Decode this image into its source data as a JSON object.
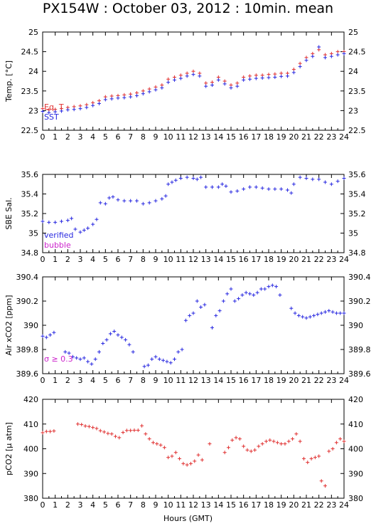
{
  "title": "PX154W : October 03, 2012 : 10min. mean",
  "colors": {
    "eq_t": "#e03030",
    "sst": "#2828e0",
    "verified": "#2828e0",
    "bubble": "#cc22cc",
    "pco2": "#e03030",
    "sigma": "#cc22cc"
  },
  "xlabel": "Hours (GMT)",
  "chart_data": [
    {
      "type": "scatter",
      "ylabel": "Temp. [°C]",
      "ylim": [
        22.5,
        25
      ],
      "yticks": [
        "22.5",
        "23",
        "23.5",
        "24",
        "24.5",
        "25"
      ],
      "xlim": [
        0,
        24
      ],
      "xticks": [
        "0",
        "1",
        "2",
        "3",
        "4",
        "5",
        "6",
        "7",
        "8",
        "9",
        "10",
        "11",
        "12",
        "13",
        "14",
        "15",
        "16",
        "17",
        "18",
        "19",
        "20",
        "21",
        "22",
        "23",
        "24"
      ],
      "legend": [
        "Eq. T",
        "SST"
      ],
      "series": [
        {
          "name": "Eq. T",
          "x": [
            0,
            0.5,
            1,
            1.5,
            2,
            2.5,
            3,
            3.5,
            4,
            4.5,
            5,
            5.5,
            6,
            6.5,
            7,
            7.5,
            8,
            8.5,
            9,
            9.5,
            10,
            10.5,
            11,
            11.5,
            12,
            12.5,
            13,
            13.5,
            14,
            14.5,
            15,
            15.5,
            16,
            16.5,
            17,
            17.5,
            18,
            18.5,
            19,
            19.5,
            20,
            20.5,
            21,
            21.5,
            22,
            22.5,
            23,
            23.5,
            24
          ],
          "y": [
            23.05,
            23.02,
            23.03,
            23.05,
            23.08,
            23.1,
            23.12,
            23.15,
            23.2,
            23.25,
            23.35,
            23.37,
            23.38,
            23.4,
            23.42,
            23.45,
            23.5,
            23.55,
            23.6,
            23.65,
            23.8,
            23.85,
            23.9,
            23.95,
            24.0,
            23.95,
            23.7,
            23.72,
            23.85,
            23.75,
            23.65,
            23.7,
            23.85,
            23.88,
            23.9,
            23.9,
            23.92,
            23.93,
            23.95,
            23.95,
            24.05,
            24.2,
            24.35,
            24.45,
            24.55,
            24.42,
            24.45,
            24.5,
            24.5
          ]
        },
        {
          "name": "SST",
          "x": [
            0,
            0.5,
            1,
            1.5,
            2,
            2.5,
            3,
            3.5,
            4,
            4.5,
            5,
            5.5,
            6,
            6.5,
            7,
            7.5,
            8,
            8.5,
            9,
            9.5,
            10,
            10.5,
            11,
            11.5,
            12,
            12.5,
            13,
            13.5,
            14,
            14.5,
            15,
            15.5,
            16,
            16.5,
            17,
            17.5,
            18,
            18.5,
            19,
            19.5,
            20,
            20.5,
            21,
            21.5,
            22,
            22.5,
            23,
            23.5,
            24
          ],
          "y": [
            22.98,
            22.95,
            22.97,
            22.99,
            23.02,
            23.03,
            23.05,
            23.08,
            23.13,
            23.18,
            23.28,
            23.3,
            23.32,
            23.33,
            23.35,
            23.38,
            23.43,
            23.48,
            23.53,
            23.58,
            23.72,
            23.78,
            23.82,
            23.88,
            23.92,
            23.88,
            23.62,
            23.65,
            23.78,
            23.68,
            23.58,
            23.62,
            23.78,
            23.8,
            23.82,
            23.83,
            23.84,
            23.85,
            23.87,
            23.88,
            23.97,
            24.12,
            24.28,
            24.38,
            24.62,
            24.35,
            24.38,
            24.42,
            24.45
          ]
        }
      ]
    },
    {
      "type": "scatter",
      "ylabel": "SBE Sal.",
      "ylim": [
        34.8,
        35.6
      ],
      "yticks": [
        "34.8",
        "35",
        "35.2",
        "35.4",
        "35.6"
      ],
      "xlim": [
        0,
        24
      ],
      "xticks": [
        "0",
        "1",
        "2",
        "3",
        "4",
        "5",
        "6",
        "7",
        "8",
        "9",
        "10",
        "11",
        "12",
        "13",
        "14",
        "15",
        "16",
        "17",
        "18",
        "19",
        "20",
        "21",
        "22",
        "23",
        "24"
      ],
      "legend": [
        "verified",
        "bubble"
      ],
      "series": [
        {
          "name": "verified",
          "x": [
            0,
            0.5,
            1,
            1.5,
            2,
            2.3,
            2.6,
            3,
            3.3,
            3.6,
            4,
            4.3,
            4.6,
            5,
            5.3,
            5.6,
            6,
            6.5,
            7,
            7.5,
            8,
            8.5,
            9,
            9.5,
            9.8,
            10,
            10.3,
            10.6,
            11,
            11.5,
            12,
            12.3,
            12.6,
            13,
            13.5,
            14,
            14.3,
            14.6,
            15,
            15.5,
            16,
            16.5,
            17,
            17.5,
            18,
            18.5,
            19,
            19.5,
            19.8,
            20,
            20.5,
            21,
            21.5,
            22,
            22.5,
            23,
            23.5,
            24
          ],
          "y": [
            35.12,
            35.11,
            35.11,
            35.12,
            35.13,
            35.15,
            35.04,
            35.01,
            35.03,
            35.05,
            35.09,
            35.14,
            35.31,
            35.3,
            35.36,
            35.37,
            35.34,
            35.33,
            35.33,
            35.33,
            35.3,
            35.31,
            35.33,
            35.35,
            35.38,
            35.5,
            35.52,
            35.54,
            35.56,
            35.57,
            35.56,
            35.55,
            35.57,
            35.47,
            35.47,
            35.47,
            35.5,
            35.48,
            35.42,
            35.43,
            35.45,
            35.47,
            35.47,
            35.46,
            35.45,
            35.45,
            35.45,
            35.44,
            35.41,
            35.5,
            35.57,
            35.56,
            35.55,
            35.55,
            35.52,
            35.5,
            35.53,
            35.56
          ]
        }
      ]
    },
    {
      "type": "scatter",
      "ylabel": "Air xCO2 [ppm]",
      "ylim": [
        389.6,
        390.4
      ],
      "yticks": [
        "389.6",
        "389.8",
        "390",
        "390.2",
        "390.4"
      ],
      "xlim": [
        0,
        24
      ],
      "xticks": [
        "0",
        "1",
        "2",
        "3",
        "4",
        "5",
        "6",
        "7",
        "8",
        "9",
        "10",
        "11",
        "12",
        "13",
        "14",
        "15",
        "16",
        "17",
        "18",
        "19",
        "20",
        "21",
        "22",
        "23",
        "24"
      ],
      "annotation": "σ ≥ 0.3",
      "series": [
        {
          "name": "Air xCO2",
          "x": [
            0,
            0.3,
            0.6,
            0.9,
            1.8,
            2.1,
            2.4,
            2.7,
            3,
            3.3,
            3.6,
            3.9,
            4.2,
            4.5,
            4.8,
            5.1,
            5.4,
            5.7,
            6,
            6.3,
            6.6,
            6.9,
            7.2,
            8.1,
            8.4,
            8.7,
            9,
            9.3,
            9.6,
            9.9,
            10.2,
            10.5,
            10.8,
            11.1,
            11.4,
            11.7,
            12,
            12.3,
            12.6,
            12.9,
            13.5,
            13.8,
            14.1,
            14.4,
            14.7,
            15,
            15.3,
            15.6,
            15.9,
            16.2,
            16.5,
            16.8,
            17.1,
            17.4,
            17.7,
            18,
            18.3,
            18.6,
            18.9,
            19.8,
            20.1,
            20.4,
            20.7,
            21,
            21.3,
            21.6,
            21.9,
            22.2,
            22.5,
            22.8,
            23.1,
            23.4,
            23.7,
            24
          ],
          "y": [
            389.91,
            389.9,
            389.92,
            389.94,
            389.78,
            389.77,
            389.74,
            389.73,
            389.72,
            389.73,
            389.7,
            389.68,
            389.72,
            389.78,
            389.85,
            389.88,
            389.93,
            389.95,
            389.92,
            389.9,
            389.88,
            389.84,
            389.78,
            389.66,
            389.67,
            389.72,
            389.74,
            389.72,
            389.71,
            389.7,
            389.69,
            389.72,
            389.78,
            389.8,
            390.04,
            390.08,
            390.1,
            390.2,
            390.15,
            390.17,
            389.98,
            390.08,
            390.12,
            390.2,
            390.26,
            390.3,
            390.2,
            390.22,
            390.25,
            390.27,
            390.26,
            390.25,
            390.27,
            390.3,
            390.3,
            390.32,
            390.33,
            390.32,
            390.25,
            390.14,
            390.1,
            390.08,
            390.07,
            390.06,
            390.07,
            390.08,
            390.09,
            390.1,
            390.11,
            390.12,
            390.11,
            390.1,
            390.1,
            390.1
          ]
        }
      ]
    },
    {
      "type": "scatter",
      "ylabel": "pCO2 [μ atm]",
      "ylim": [
        380,
        420
      ],
      "yticks": [
        "380",
        "390",
        "400",
        "410",
        "420"
      ],
      "xlim": [
        0,
        24
      ],
      "xticks": [
        "0",
        "1",
        "2",
        "3",
        "4",
        "5",
        "6",
        "7",
        "8",
        "9",
        "10",
        "11",
        "12",
        "13",
        "14",
        "15",
        "16",
        "17",
        "18",
        "19",
        "20",
        "21",
        "22",
        "23",
        "24"
      ],
      "series": [
        {
          "name": "pCO2",
          "x": [
            0,
            0.3,
            0.6,
            0.9,
            2.8,
            3.1,
            3.4,
            3.7,
            4,
            4.3,
            4.6,
            4.9,
            5.2,
            5.5,
            5.8,
            6.1,
            6.4,
            6.7,
            7,
            7.3,
            7.6,
            7.9,
            8.2,
            8.5,
            8.8,
            9.1,
            9.4,
            9.7,
            10,
            10.3,
            10.6,
            10.9,
            11.2,
            11.5,
            11.8,
            12.1,
            12.4,
            12.7,
            13.3,
            14.5,
            14.8,
            15.1,
            15.4,
            15.7,
            16,
            16.3,
            16.6,
            16.9,
            17.2,
            17.5,
            17.8,
            18.1,
            18.4,
            18.7,
            19,
            19.3,
            19.6,
            19.9,
            20.2,
            20.5,
            20.8,
            21.1,
            21.4,
            21.7,
            22,
            22.2,
            22.5,
            22.8,
            23.1,
            23.4,
            23.7,
            24
          ],
          "y": [
            406.5,
            407,
            407,
            407.2,
            410,
            409.8,
            409.2,
            409,
            408.6,
            408.2,
            407.3,
            406.8,
            406.2,
            406,
            405,
            404.5,
            406.6,
            407.4,
            407.4,
            407.5,
            407.5,
            409.3,
            406,
            404,
            402.5,
            402,
            401.5,
            400.5,
            396.5,
            397,
            398.5,
            396,
            394,
            393.5,
            394,
            395,
            397.5,
            395.5,
            402,
            398.5,
            400.5,
            403.5,
            404.5,
            404,
            401,
            399.5,
            399,
            399.5,
            401,
            402,
            403,
            403.5,
            403,
            402.5,
            402,
            402,
            403,
            404,
            406,
            403,
            396,
            394.5,
            396,
            396.5,
            397,
            387,
            385,
            399,
            400,
            402.5,
            404,
            403
          ]
        }
      ]
    }
  ]
}
